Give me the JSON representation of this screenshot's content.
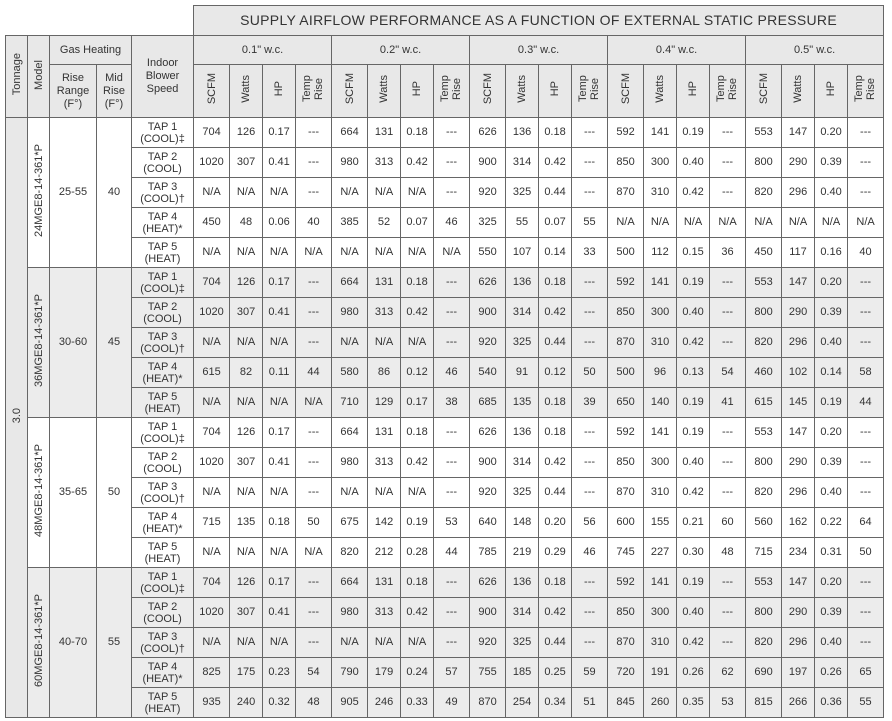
{
  "title": "SUPPLY AIRFLOW PERFORMANCE AS A FUNCTION OF EXTERNAL STATIC PRESSURE",
  "headers": {
    "tonnage": "Tonnage",
    "model": "Model",
    "gas_heating": "Gas Heating",
    "rise_range": "Rise Range (F°)",
    "mid_rise": "Mid Rise (F°)",
    "blower_speed": "Indoor Blower Speed",
    "pressures": [
      "0.1\" w.c.",
      "0.2\" w.c.",
      "0.3\" w.c.",
      "0.4\" w.c.",
      "0.5\" w.c."
    ],
    "columns": [
      "SCFM",
      "Watts",
      "HP",
      "Temp Rise"
    ]
  },
  "tonnage": "3.0",
  "models": [
    {
      "model": "24MGE8-14-361*P",
      "rise_range": "25-55",
      "mid_rise": "40",
      "rows": [
        {
          "tap": "TAP 1",
          "mode": "(COOL)‡",
          "values": [
            "704",
            "126",
            "0.17",
            "---",
            "664",
            "131",
            "0.18",
            "---",
            "626",
            "136",
            "0.18",
            "---",
            "592",
            "141",
            "0.19",
            "---",
            "553",
            "147",
            "0.20",
            "---"
          ]
        },
        {
          "tap": "TAP 2",
          "mode": "(COOL)",
          "values": [
            "1020",
            "307",
            "0.41",
            "---",
            "980",
            "313",
            "0.42",
            "---",
            "900",
            "314",
            "0.42",
            "---",
            "850",
            "300",
            "0.40",
            "---",
            "800",
            "290",
            "0.39",
            "---"
          ]
        },
        {
          "tap": "TAP 3",
          "mode": "(COOL)†",
          "values": [
            "N/A",
            "N/A",
            "N/A",
            "---",
            "N/A",
            "N/A",
            "N/A",
            "---",
            "920",
            "325",
            "0.44",
            "---",
            "870",
            "310",
            "0.42",
            "---",
            "820",
            "296",
            "0.40",
            "---"
          ]
        },
        {
          "tap": "TAP 4",
          "mode": "(HEAT)*",
          "values": [
            "450",
            "48",
            "0.06",
            "40",
            "385",
            "52",
            "0.07",
            "46",
            "325",
            "55",
            "0.07",
            "55",
            "N/A",
            "N/A",
            "N/A",
            "N/A",
            "N/A",
            "N/A",
            "N/A",
            "N/A"
          ]
        },
        {
          "tap": "TAP 5",
          "mode": "(HEAT)",
          "values": [
            "N/A",
            "N/A",
            "N/A",
            "N/A",
            "N/A",
            "N/A",
            "N/A",
            "N/A",
            "550",
            "107",
            "0.14",
            "33",
            "500",
            "112",
            "0.15",
            "36",
            "450",
            "117",
            "0.16",
            "40"
          ]
        }
      ]
    },
    {
      "model": "36MGE8-14-361*P",
      "rise_range": "30-60",
      "mid_rise": "45",
      "rows": [
        {
          "tap": "TAP 1",
          "mode": "(COOL)‡",
          "values": [
            "704",
            "126",
            "0.17",
            "---",
            "664",
            "131",
            "0.18",
            "---",
            "626",
            "136",
            "0.18",
            "---",
            "592",
            "141",
            "0.19",
            "---",
            "553",
            "147",
            "0.20",
            "---"
          ]
        },
        {
          "tap": "TAP 2",
          "mode": "(COOL)",
          "values": [
            "1020",
            "307",
            "0.41",
            "---",
            "980",
            "313",
            "0.42",
            "---",
            "900",
            "314",
            "0.42",
            "---",
            "850",
            "300",
            "0.40",
            "---",
            "800",
            "290",
            "0.39",
            "---"
          ]
        },
        {
          "tap": "TAP 3",
          "mode": "(COOL)†",
          "values": [
            "N/A",
            "N/A",
            "N/A",
            "---",
            "N/A",
            "N/A",
            "N/A",
            "---",
            "920",
            "325",
            "0.44",
            "---",
            "870",
            "310",
            "0.42",
            "---",
            "820",
            "296",
            "0.40",
            "---"
          ]
        },
        {
          "tap": "TAP 4",
          "mode": "(HEAT)*",
          "values": [
            "615",
            "82",
            "0.11",
            "44",
            "580",
            "86",
            "0.12",
            "46",
            "540",
            "91",
            "0.12",
            "50",
            "500",
            "96",
            "0.13",
            "54",
            "460",
            "102",
            "0.14",
            "58"
          ]
        },
        {
          "tap": "TAP 5",
          "mode": "(HEAT)",
          "values": [
            "N/A",
            "N/A",
            "N/A",
            "N/A",
            "710",
            "129",
            "0.17",
            "38",
            "685",
            "135",
            "0.18",
            "39",
            "650",
            "140",
            "0.19",
            "41",
            "615",
            "145",
            "0.19",
            "44"
          ]
        }
      ]
    },
    {
      "model": "48MGE8-14-361*P",
      "rise_range": "35-65",
      "mid_rise": "50",
      "rows": [
        {
          "tap": "TAP 1",
          "mode": "(COOL)‡",
          "values": [
            "704",
            "126",
            "0.17",
            "---",
            "664",
            "131",
            "0.18",
            "---",
            "626",
            "136",
            "0.18",
            "---",
            "592",
            "141",
            "0.19",
            "---",
            "553",
            "147",
            "0.20",
            "---"
          ]
        },
        {
          "tap": "TAP 2",
          "mode": "(COOL)",
          "values": [
            "1020",
            "307",
            "0.41",
            "---",
            "980",
            "313",
            "0.42",
            "---",
            "900",
            "314",
            "0.42",
            "---",
            "850",
            "300",
            "0.40",
            "---",
            "800",
            "290",
            "0.39",
            "---"
          ]
        },
        {
          "tap": "TAP 3",
          "mode": "(COOL)†",
          "values": [
            "N/A",
            "N/A",
            "N/A",
            "---",
            "N/A",
            "N/A",
            "N/A",
            "---",
            "920",
            "325",
            "0.44",
            "---",
            "870",
            "310",
            "0.42",
            "---",
            "820",
            "296",
            "0.40",
            "---"
          ]
        },
        {
          "tap": "TAP 4",
          "mode": "(HEAT)*",
          "values": [
            "715",
            "135",
            "0.18",
            "50",
            "675",
            "142",
            "0.19",
            "53",
            "640",
            "148",
            "0.20",
            "56",
            "600",
            "155",
            "0.21",
            "60",
            "560",
            "162",
            "0.22",
            "64"
          ]
        },
        {
          "tap": "TAP 5",
          "mode": "(HEAT)",
          "values": [
            "N/A",
            "N/A",
            "N/A",
            "N/A",
            "820",
            "212",
            "0.28",
            "44",
            "785",
            "219",
            "0.29",
            "46",
            "745",
            "227",
            "0.30",
            "48",
            "715",
            "234",
            "0.31",
            "50"
          ]
        }
      ]
    },
    {
      "model": "60MGE8-14-361*P",
      "rise_range": "40-70",
      "mid_rise": "55",
      "rows": [
        {
          "tap": "TAP 1",
          "mode": "(COOL)‡",
          "values": [
            "704",
            "126",
            "0.17",
            "---",
            "664",
            "131",
            "0.18",
            "---",
            "626",
            "136",
            "0.18",
            "---",
            "592",
            "141",
            "0.19",
            "---",
            "553",
            "147",
            "0.20",
            "---"
          ]
        },
        {
          "tap": "TAP 2",
          "mode": "(COOL)",
          "values": [
            "1020",
            "307",
            "0.41",
            "---",
            "980",
            "313",
            "0.42",
            "---",
            "900",
            "314",
            "0.42",
            "---",
            "850",
            "300",
            "0.40",
            "---",
            "800",
            "290",
            "0.39",
            "---"
          ]
        },
        {
          "tap": "TAP 3",
          "mode": "(COOL)†",
          "values": [
            "N/A",
            "N/A",
            "N/A",
            "---",
            "N/A",
            "N/A",
            "N/A",
            "---",
            "920",
            "325",
            "0.44",
            "---",
            "870",
            "310",
            "0.42",
            "---",
            "820",
            "296",
            "0.40",
            "---"
          ]
        },
        {
          "tap": "TAP 4",
          "mode": "(HEAT)*",
          "values": [
            "825",
            "175",
            "0.23",
            "54",
            "790",
            "179",
            "0.24",
            "57",
            "755",
            "185",
            "0.25",
            "59",
            "720",
            "191",
            "0.26",
            "62",
            "690",
            "197",
            "0.26",
            "65"
          ]
        },
        {
          "tap": "TAP 5",
          "mode": "(HEAT)",
          "values": [
            "935",
            "240",
            "0.32",
            "48",
            "905",
            "246",
            "0.33",
            "49",
            "870",
            "254",
            "0.34",
            "51",
            "845",
            "260",
            "0.35",
            "53",
            "815",
            "266",
            "0.36",
            "55"
          ]
        }
      ]
    }
  ]
}
